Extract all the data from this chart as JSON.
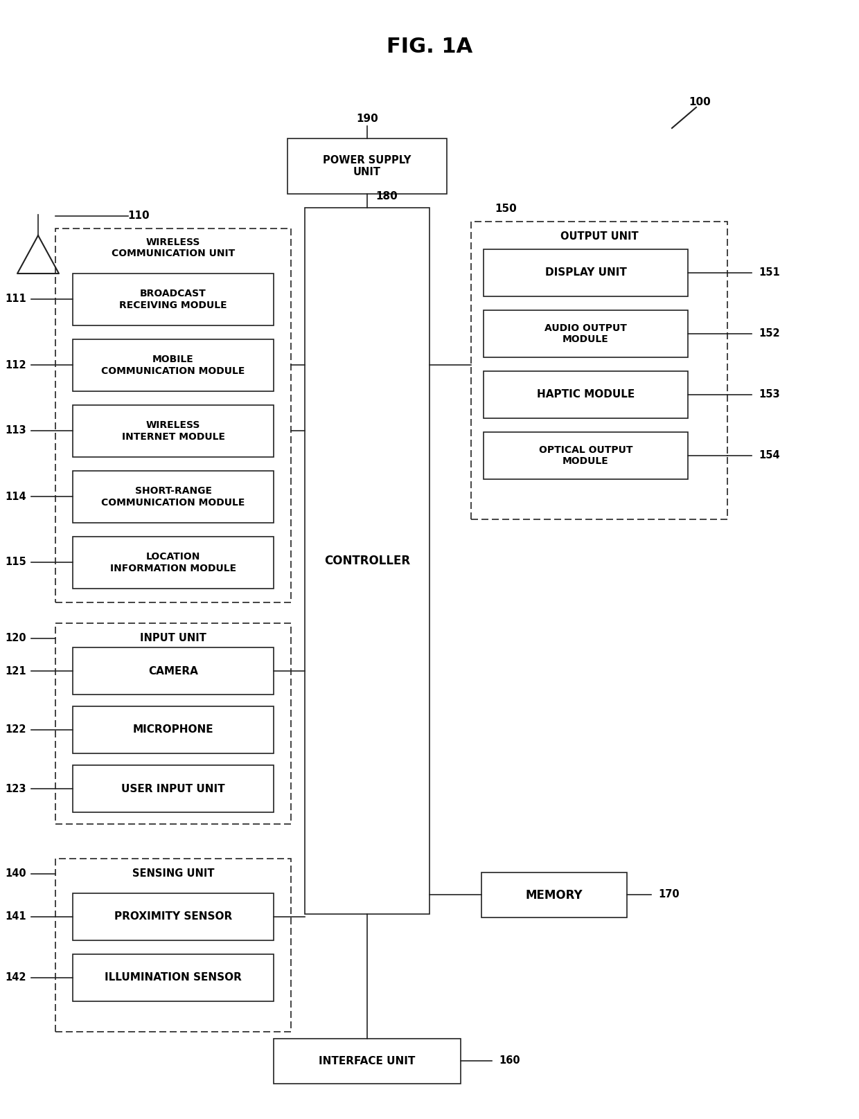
{
  "title": "FIG. 1A",
  "bg_color": "#ffffff",
  "fig_width": 12.4,
  "fig_height": 16.16,
  "dpi": 100,
  "font": "DejaVu Sans",
  "label_100": "100",
  "label_190": "190",
  "label_180": "180",
  "label_110": "110",
  "label_111": "111",
  "label_112": "112",
  "label_113": "113",
  "label_114": "114",
  "label_115": "115",
  "label_120": "120",
  "label_121": "121",
  "label_122": "122",
  "label_123": "123",
  "label_140": "140",
  "label_141": "141",
  "label_142": "142",
  "label_150": "150",
  "label_151": "151",
  "label_152": "152",
  "label_153": "153",
  "label_154": "154",
  "label_160": "160",
  "label_170": "170",
  "text_psu": "POWER SUPPLY\nUNIT",
  "text_ctrl": "CONTROLLER",
  "text_wcu": "WIRELESS\nCOMMUNICATION UNIT",
  "text_bcast": "BROADCAST\nRECEIVING MODULE",
  "text_mob": "MOBILE\nCOMMUNICATION MODULE",
  "text_wim": "WIRELESS\nINTERNET MODULE",
  "text_src": "SHORT-RANGE\nCOMMUNICATION MODULE",
  "text_loc": "LOCATION\nINFORMATION MODULE",
  "text_iu": "INPUT UNIT",
  "text_cam": "CAMERA",
  "text_mic": "MICROPHONE",
  "text_uiu": "USER INPUT UNIT",
  "text_su": "SENSING UNIT",
  "text_ps": "PROXIMITY SENSOR",
  "text_il": "ILLUMINATION SENSOR",
  "text_ou": "OUTPUT UNIT",
  "text_du": "DISPLAY UNIT",
  "text_ao": "AUDIO OUTPUT\nMODULE",
  "text_hm": "HAPTIC MODULE",
  "text_om": "OPTICAL OUTPUT\nMODULE",
  "text_mem": "MEMORY",
  "text_ifu": "INTERFACE UNIT"
}
